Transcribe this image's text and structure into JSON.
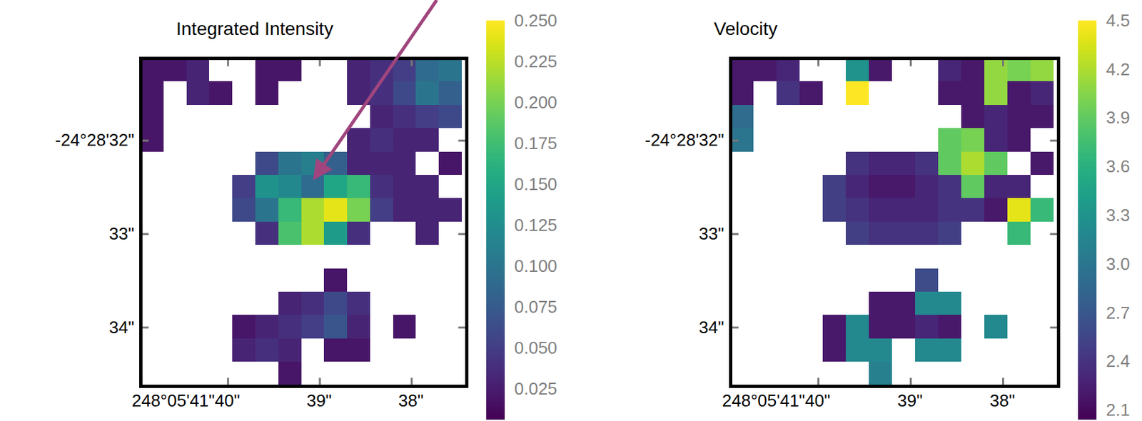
{
  "chart_data": [
    {
      "type": "heatmap",
      "title": "Integrated Intensity",
      "color": "viridis",
      "x": [
        40.825,
        40.575,
        40.325,
        40.075,
        39.825,
        39.575,
        39.325,
        39.075,
        38.825,
        38.575,
        38.325,
        38.075,
        37.825,
        37.575
      ],
      "y": [
        31.245,
        31.495,
        31.745,
        31.995,
        32.245,
        32.495,
        32.745,
        32.995,
        33.245,
        33.495,
        33.745,
        33.995,
        34.245,
        34.495
      ],
      "cells": [
        [
          0.02,
          0.02,
          0.03,
          null,
          null,
          0.02,
          0.02,
          null,
          null,
          0.03,
          0.04,
          0.05,
          0.09,
          0.1
        ],
        [
          0.02,
          null,
          0.03,
          0.02,
          null,
          0.02,
          null,
          null,
          null,
          0.03,
          0.04,
          0.06,
          0.1,
          0.08
        ],
        [
          0.02,
          null,
          null,
          null,
          null,
          null,
          null,
          null,
          null,
          null,
          0.03,
          0.04,
          0.05,
          0.06
        ],
        [
          0.02,
          null,
          null,
          null,
          null,
          null,
          null,
          null,
          null,
          0.03,
          0.04,
          0.03,
          0.03,
          null
        ],
        [
          null,
          null,
          null,
          null,
          null,
          0.06,
          0.1,
          0.11,
          0.08,
          0.03,
          0.03,
          0.03,
          null,
          0.02
        ],
        [
          null,
          null,
          null,
          null,
          0.05,
          0.13,
          0.12,
          0.09,
          0.15,
          0.17,
          0.04,
          0.03,
          0.03,
          null
        ],
        [
          null,
          null,
          null,
          null,
          0.06,
          0.1,
          0.17,
          0.22,
          0.24,
          0.2,
          0.05,
          0.03,
          0.03,
          0.03
        ],
        [
          null,
          null,
          null,
          null,
          null,
          0.04,
          0.18,
          0.22,
          0.14,
          0.04,
          null,
          null,
          0.03,
          null
        ],
        [
          null,
          null,
          null,
          null,
          null,
          null,
          null,
          null,
          null,
          null,
          null,
          null,
          null,
          null
        ],
        [
          null,
          null,
          null,
          null,
          null,
          null,
          null,
          null,
          0.02,
          null,
          null,
          null,
          null,
          null
        ],
        [
          null,
          null,
          null,
          null,
          null,
          null,
          0.03,
          0.04,
          0.06,
          0.04,
          null,
          null,
          null,
          null
        ],
        [
          null,
          null,
          null,
          null,
          0.02,
          0.03,
          0.04,
          0.05,
          0.07,
          0.03,
          null,
          0.02,
          null,
          null
        ],
        [
          null,
          null,
          null,
          null,
          0.03,
          0.04,
          0.03,
          null,
          0.02,
          0.02,
          null,
          null,
          null,
          null
        ],
        [
          null,
          null,
          null,
          null,
          null,
          null,
          0.02,
          null,
          null,
          null,
          null,
          null,
          null,
          null
        ]
      ],
      "xlim": [
        40.95,
        37.4
      ],
      "xticks": [
        {
          "value": 40,
          "label": "248°05'41\"40\""
        },
        {
          "value": 39,
          "label": "39\""
        },
        {
          "value": 38,
          "label": "38\""
        }
      ],
      "ylim": [
        34.63,
        31.12
      ],
      "yticks": [
        {
          "value": 32,
          "label": "-24°28'32\""
        },
        {
          "value": 33,
          "label": "33\""
        },
        {
          "value": 34,
          "label": "34\""
        }
      ],
      "colorbar": {
        "range": [
          0.006,
          0.25
        ],
        "ticks": [
          {
            "value": 0.25,
            "label": "0.250"
          },
          0.225,
          {
            "value": 0.2,
            "label": "0.200"
          },
          0.175,
          {
            "value": 0.15,
            "label": "0.150"
          },
          0.125,
          {
            "value": 0.1,
            "label": "0.100"
          },
          0.075,
          {
            "value": 0.05,
            "label": "0.050"
          },
          0.025
        ]
      }
    },
    {
      "type": "heatmap",
      "title": "Velocity",
      "color": "viridis",
      "x": [
        40.825,
        40.575,
        40.325,
        40.075,
        39.825,
        39.575,
        39.325,
        39.075,
        38.825,
        38.575,
        38.325,
        38.075,
        37.825,
        37.575
      ],
      "y": [
        31.245,
        31.495,
        31.745,
        31.995,
        32.245,
        32.495,
        32.745,
        32.995,
        33.245,
        33.495,
        33.745,
        33.995,
        34.245,
        34.495
      ],
      "cells": [
        [
          2.2,
          2.2,
          2.3,
          null,
          null,
          3.3,
          2.2,
          null,
          null,
          2.3,
          2.2,
          4.1,
          4.0,
          4.1
        ],
        [
          2.2,
          null,
          2.4,
          2.2,
          null,
          4.5,
          null,
          null,
          null,
          2.2,
          2.2,
          4.1,
          2.2,
          2.3
        ],
        [
          2.9,
          null,
          null,
          null,
          null,
          null,
          null,
          null,
          null,
          null,
          2.2,
          2.3,
          2.2,
          2.2
        ],
        [
          3.0,
          null,
          null,
          null,
          null,
          null,
          null,
          null,
          null,
          3.9,
          4.0,
          2.3,
          2.2,
          null
        ],
        [
          null,
          null,
          null,
          null,
          null,
          2.4,
          2.3,
          2.3,
          2.4,
          3.9,
          4.2,
          3.9,
          null,
          2.2
        ],
        [
          null,
          null,
          null,
          null,
          2.5,
          2.3,
          2.2,
          2.2,
          2.3,
          2.4,
          3.9,
          2.3,
          2.3,
          null
        ],
        [
          null,
          null,
          null,
          null,
          2.5,
          2.4,
          2.3,
          2.3,
          2.3,
          2.4,
          2.4,
          2.2,
          4.4,
          3.7
        ],
        [
          null,
          null,
          null,
          null,
          null,
          2.5,
          2.4,
          2.4,
          2.4,
          2.5,
          null,
          null,
          3.7,
          null
        ],
        [
          null,
          null,
          null,
          null,
          null,
          null,
          null,
          null,
          null,
          null,
          null,
          null,
          null,
          null
        ],
        [
          null,
          null,
          null,
          null,
          null,
          null,
          null,
          null,
          2.6,
          null,
          null,
          null,
          null,
          null
        ],
        [
          null,
          null,
          null,
          null,
          null,
          null,
          2.2,
          2.2,
          3.2,
          3.2,
          null,
          null,
          null,
          null
        ],
        [
          null,
          null,
          null,
          null,
          2.2,
          3.2,
          2.2,
          2.2,
          2.3,
          2.2,
          null,
          3.2,
          null,
          null
        ],
        [
          null,
          null,
          null,
          null,
          2.2,
          3.2,
          3.2,
          null,
          3.2,
          3.2,
          null,
          null,
          null,
          null
        ],
        [
          null,
          null,
          null,
          null,
          null,
          null,
          3.1,
          null,
          null,
          null,
          null,
          null,
          null,
          null
        ]
      ],
      "xlim": [
        40.95,
        37.4
      ],
      "xticks": [
        {
          "value": 40,
          "label": "248°05'41\"40\""
        },
        {
          "value": 39,
          "label": "39\""
        },
        {
          "value": 38,
          "label": "38\""
        }
      ],
      "ylim": [
        34.63,
        31.12
      ],
      "yticks": [
        {
          "value": 32,
          "label": "-24°28'32\""
        },
        {
          "value": 33,
          "label": "33\""
        },
        {
          "value": 34,
          "label": "34\""
        }
      ],
      "colorbar": {
        "range": [
          2.04,
          4.5
        ],
        "ticks": [
          4.5,
          4.2,
          3.9,
          3.6,
          3.3,
          {
            "value": 3,
            "label": "3.0"
          },
          2.7,
          2.4,
          2.1
        ]
      }
    }
  ]
}
